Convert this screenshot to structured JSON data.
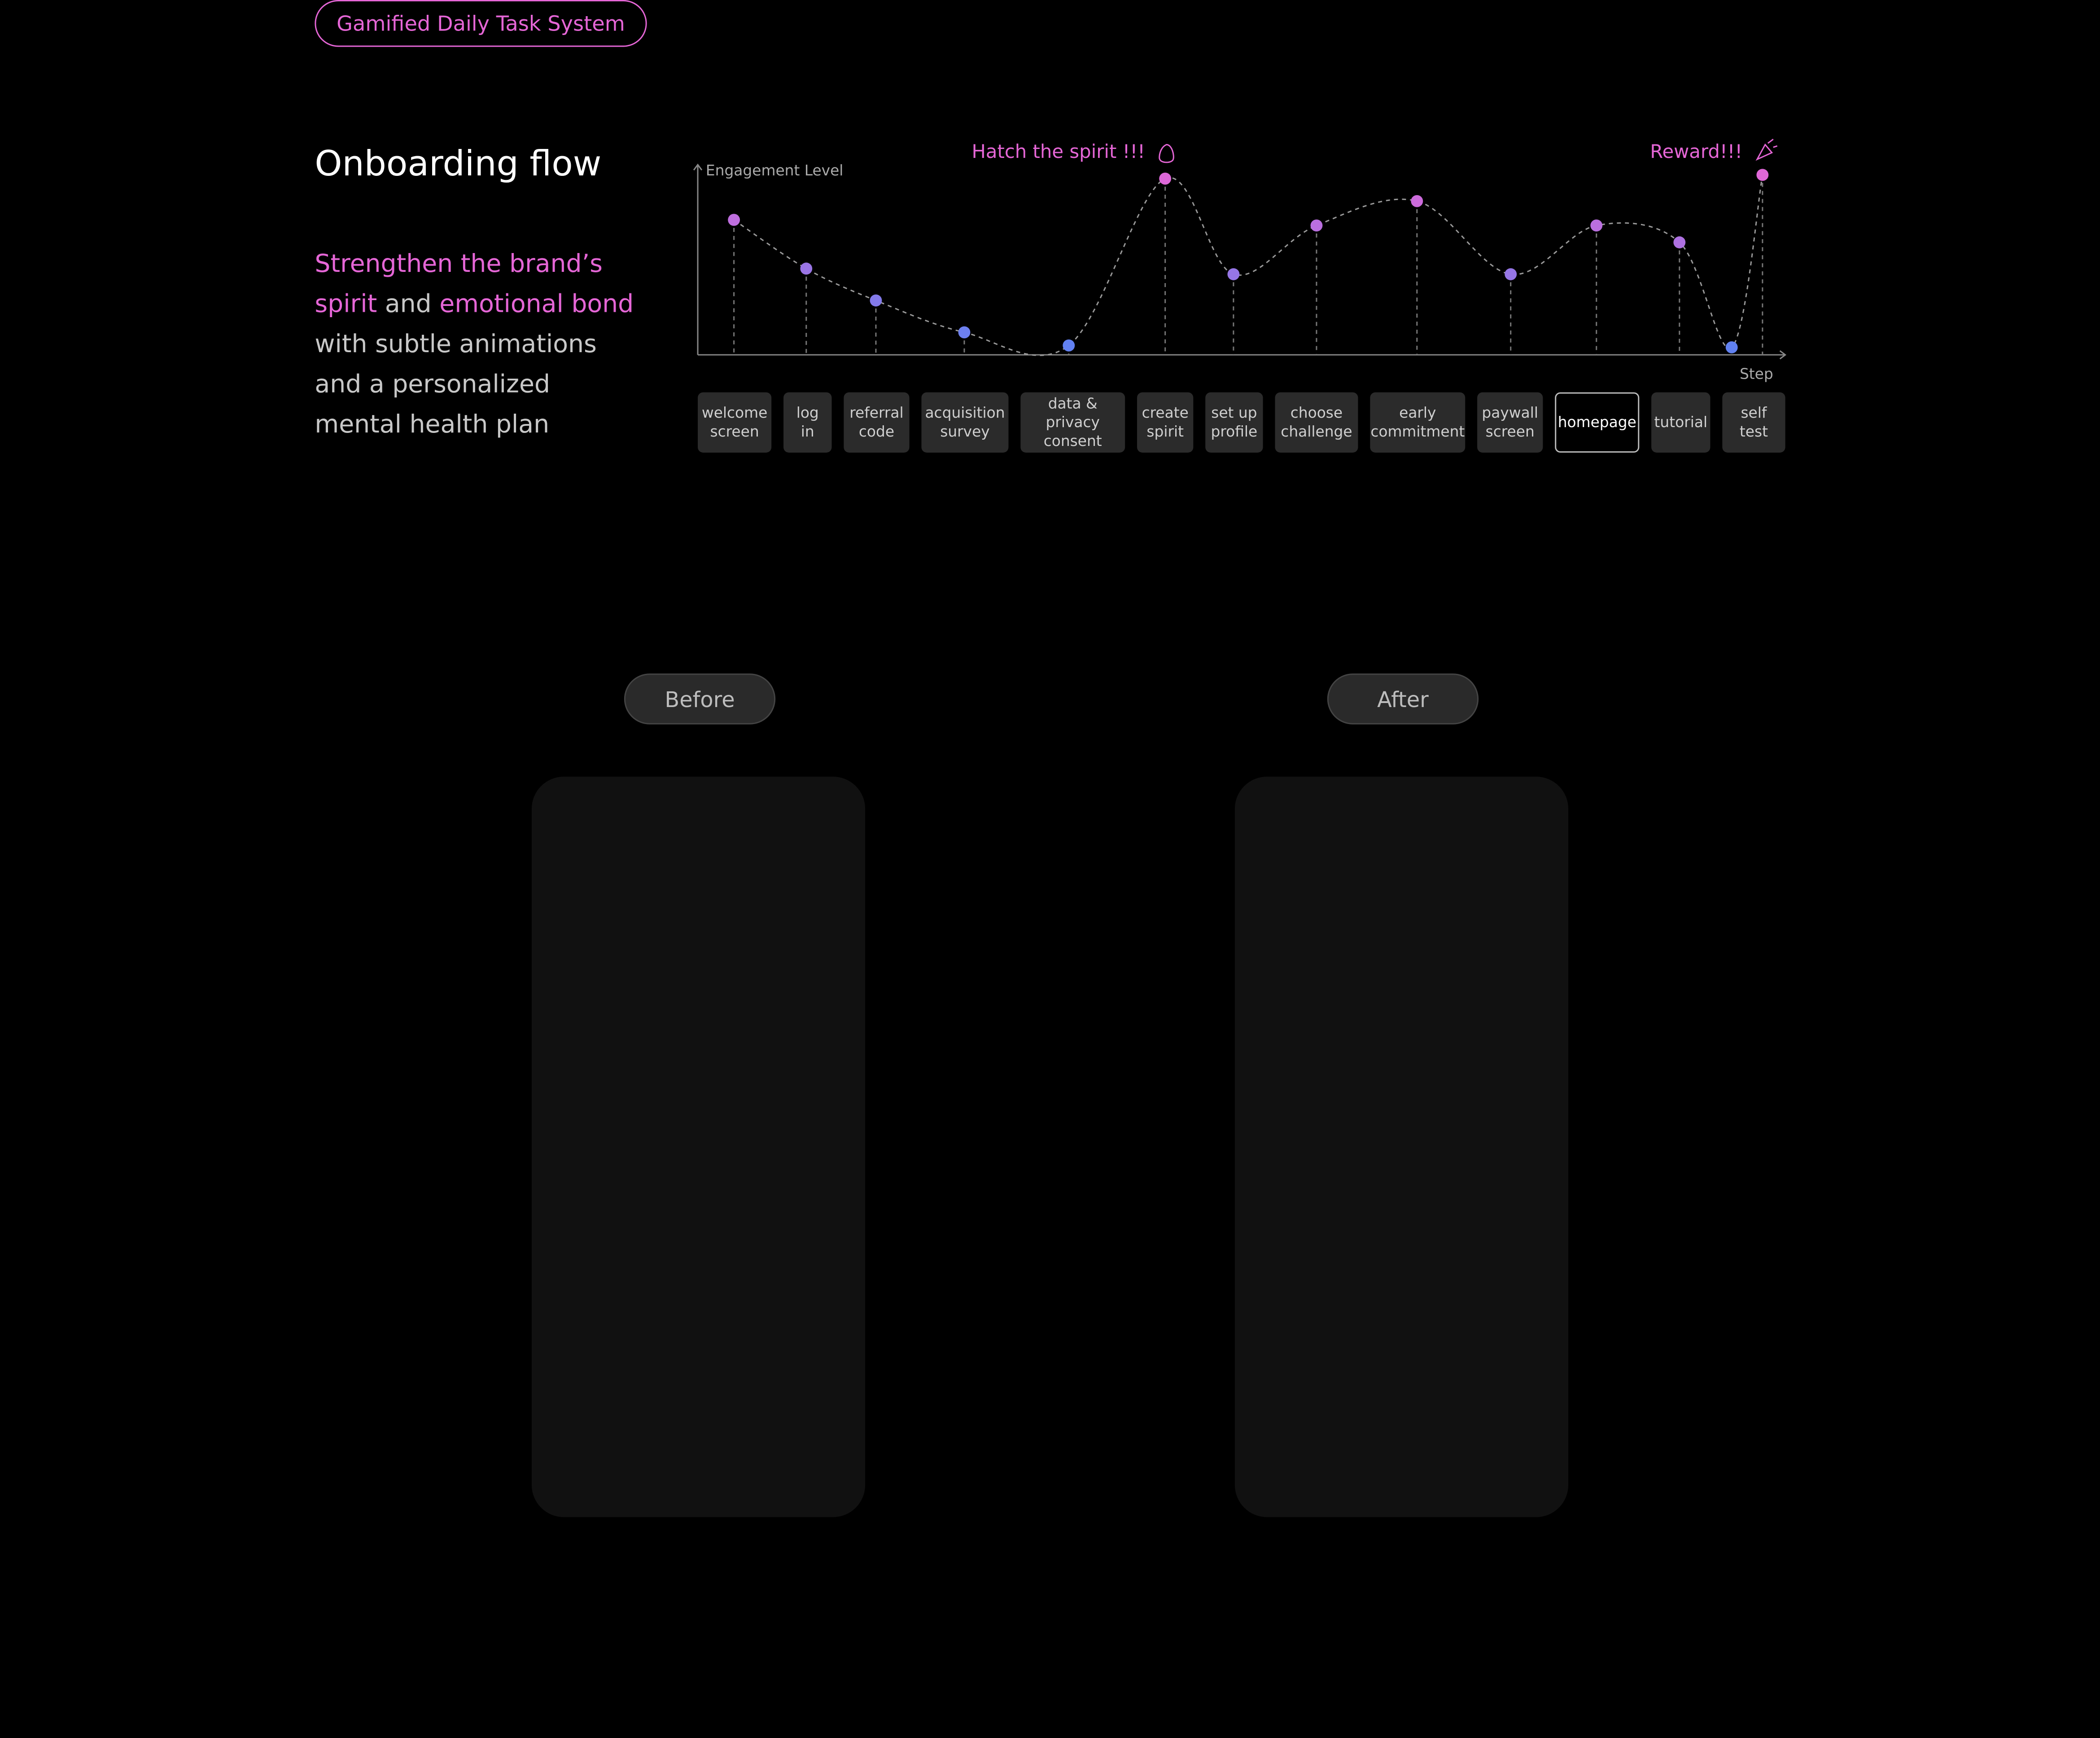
{
  "header": {
    "tag": "Gamified Daily Task System"
  },
  "title": "Onboarding flow",
  "description": [
    {
      "text": "Strengthen the brand’s spirit",
      "accent": true
    },
    {
      "text": " and ",
      "accent": false
    },
    {
      "text": "emotional bond",
      "accent": true
    },
    {
      "text": " with subtle animations and a personalized mental health plan",
      "accent": false
    }
  ],
  "chart_data": {
    "type": "line",
    "y_label": "Engagement Level",
    "x_label": "Step",
    "categories": [
      "welcome screen",
      "log in",
      "referral code",
      "acquisition survey",
      "data & privacy consent",
      "create spirit",
      "set up profile",
      "choose challenge",
      "early commitment",
      "paywall screen",
      "homepage",
      "tutorial",
      null,
      "self test"
    ],
    "values": [
      72,
      46,
      29,
      12,
      5,
      94,
      43,
      69,
      82,
      43,
      69,
      60,
      4,
      96
    ],
    "ylim": [
      0,
      100
    ],
    "color_high": "#e566d6",
    "color_low": "#5b82f2",
    "highlighted": "homepage",
    "annotations": [
      {
        "text": "Hatch the spirit !!!",
        "at": 5
      },
      {
        "text": "Reward!!!",
        "at": 13
      }
    ]
  },
  "comparison": {
    "before": "Before",
    "after": "After"
  }
}
